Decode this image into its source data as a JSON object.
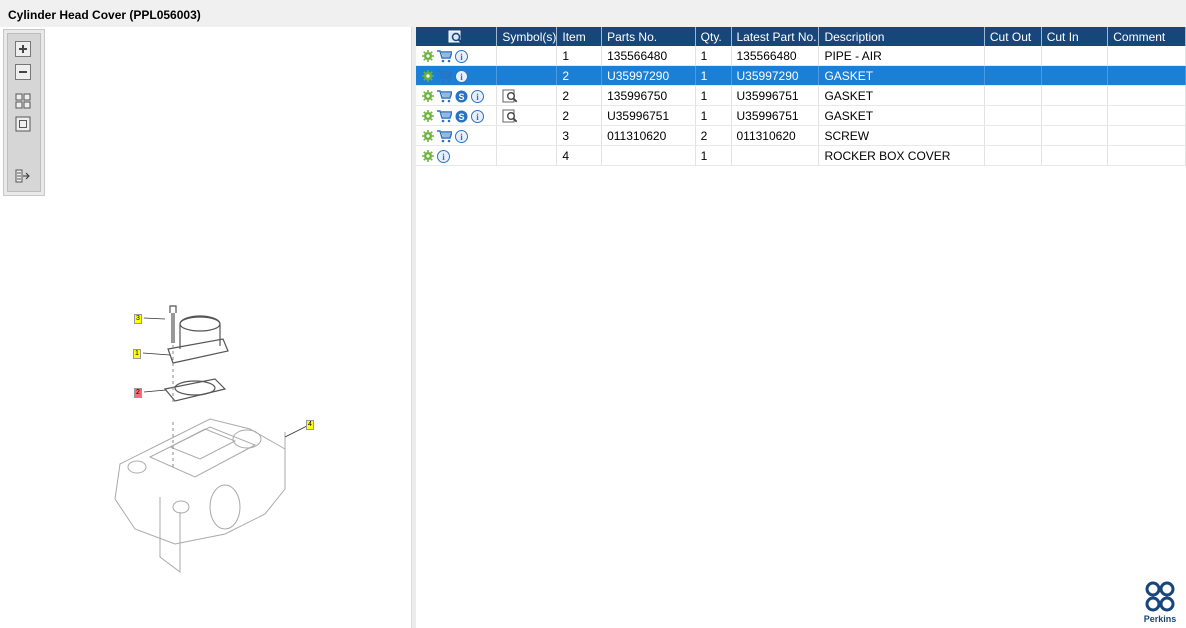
{
  "window": {
    "title": "Cylinder Head Cover (PPL056003)"
  },
  "toolbox": {
    "buttons": [
      {
        "name": "zoom-in-button",
        "icon": "zoom-in-icon"
      },
      {
        "name": "zoom-out-button",
        "icon": "zoom-out-icon"
      },
      {
        "name": "fit-all-button",
        "icon": "fit-all-icon"
      },
      {
        "name": "actual-size-button",
        "icon": "actual-size-icon"
      },
      {
        "name": "export-button",
        "icon": "export-icon"
      }
    ]
  },
  "diagram": {
    "callouts": [
      {
        "label": "3",
        "color": "#ffff00"
      },
      {
        "label": "1",
        "color": "#ffff00"
      },
      {
        "label": "2",
        "color": "#ff6b6b"
      },
      {
        "label": "4",
        "color": "#ffff00"
      }
    ]
  },
  "table": {
    "headers": {
      "symbols": "Symbol(s)",
      "item": "Item",
      "parts_no": "Parts No.",
      "qty": "Qty.",
      "latest": "Latest Part No.",
      "description": "Description",
      "cut_out": "Cut Out",
      "cut_in": "Cut In",
      "comment": "Comment"
    },
    "rows": [
      {
        "item": "1",
        "parts_no": "135566480",
        "qty": "1",
        "latest": "135566480",
        "description": "PIPE - AIR",
        "cut_out": "",
        "cut_in": "",
        "comment": "",
        "cart": true,
        "s": false,
        "viewer": false,
        "selected": false
      },
      {
        "item": "2",
        "parts_no": "U35997290",
        "qty": "1",
        "latest": "U35997290",
        "description": "GASKET",
        "cut_out": "",
        "cut_in": "",
        "comment": "",
        "cart": true,
        "s": false,
        "viewer": false,
        "selected": true
      },
      {
        "item": "2",
        "parts_no": "135996750",
        "qty": "1",
        "latest": "U35996751",
        "description": "GASKET",
        "cut_out": "",
        "cut_in": "",
        "comment": "",
        "cart": true,
        "s": true,
        "viewer": true,
        "selected": false
      },
      {
        "item": "2",
        "parts_no": "U35996751",
        "qty": "1",
        "latest": "U35996751",
        "description": "GASKET",
        "cut_out": "",
        "cut_in": "",
        "comment": "",
        "cart": true,
        "s": true,
        "viewer": true,
        "selected": false
      },
      {
        "item": "3",
        "parts_no": "011310620",
        "qty": "2",
        "latest": "011310620",
        "description": "SCREW",
        "cut_out": "",
        "cut_in": "",
        "comment": "",
        "cart": true,
        "s": false,
        "viewer": false,
        "selected": false
      },
      {
        "item": "4",
        "parts_no": "",
        "qty": "1",
        "latest": "",
        "description": "ROCKER BOX COVER",
        "cut_out": "",
        "cut_in": "",
        "comment": "",
        "cart": false,
        "s": false,
        "viewer": false,
        "selected": false
      }
    ]
  },
  "brand": {
    "name": "Perkins",
    "color": "#17467a"
  },
  "colors": {
    "header_bg": "#17467a",
    "selection": "#1b7fd6",
    "gear": "#6bb33a"
  }
}
